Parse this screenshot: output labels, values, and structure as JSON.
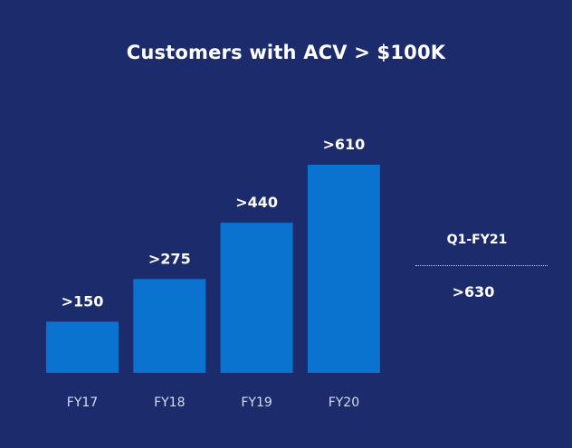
{
  "chart_data": {
    "type": "bar",
    "title": "Customers with ACV > $100K",
    "xlabel": "",
    "ylabel": "",
    "categories": [
      "FY17",
      "FY18",
      "FY19",
      "FY20"
    ],
    "values": [
      150,
      275,
      440,
      610
    ],
    "data_labels": [
      ">150",
      ">275",
      ">440",
      ">610"
    ],
    "ylim": [
      0,
      610
    ],
    "grid": false,
    "legend": "none"
  },
  "callout": {
    "label": "Q1-FY21",
    "value": ">630"
  },
  "colors": {
    "background": "#1b2b6b",
    "bar": "#0a72cf",
    "text": "#ffffff",
    "tick_text": "#d7dcf0"
  }
}
